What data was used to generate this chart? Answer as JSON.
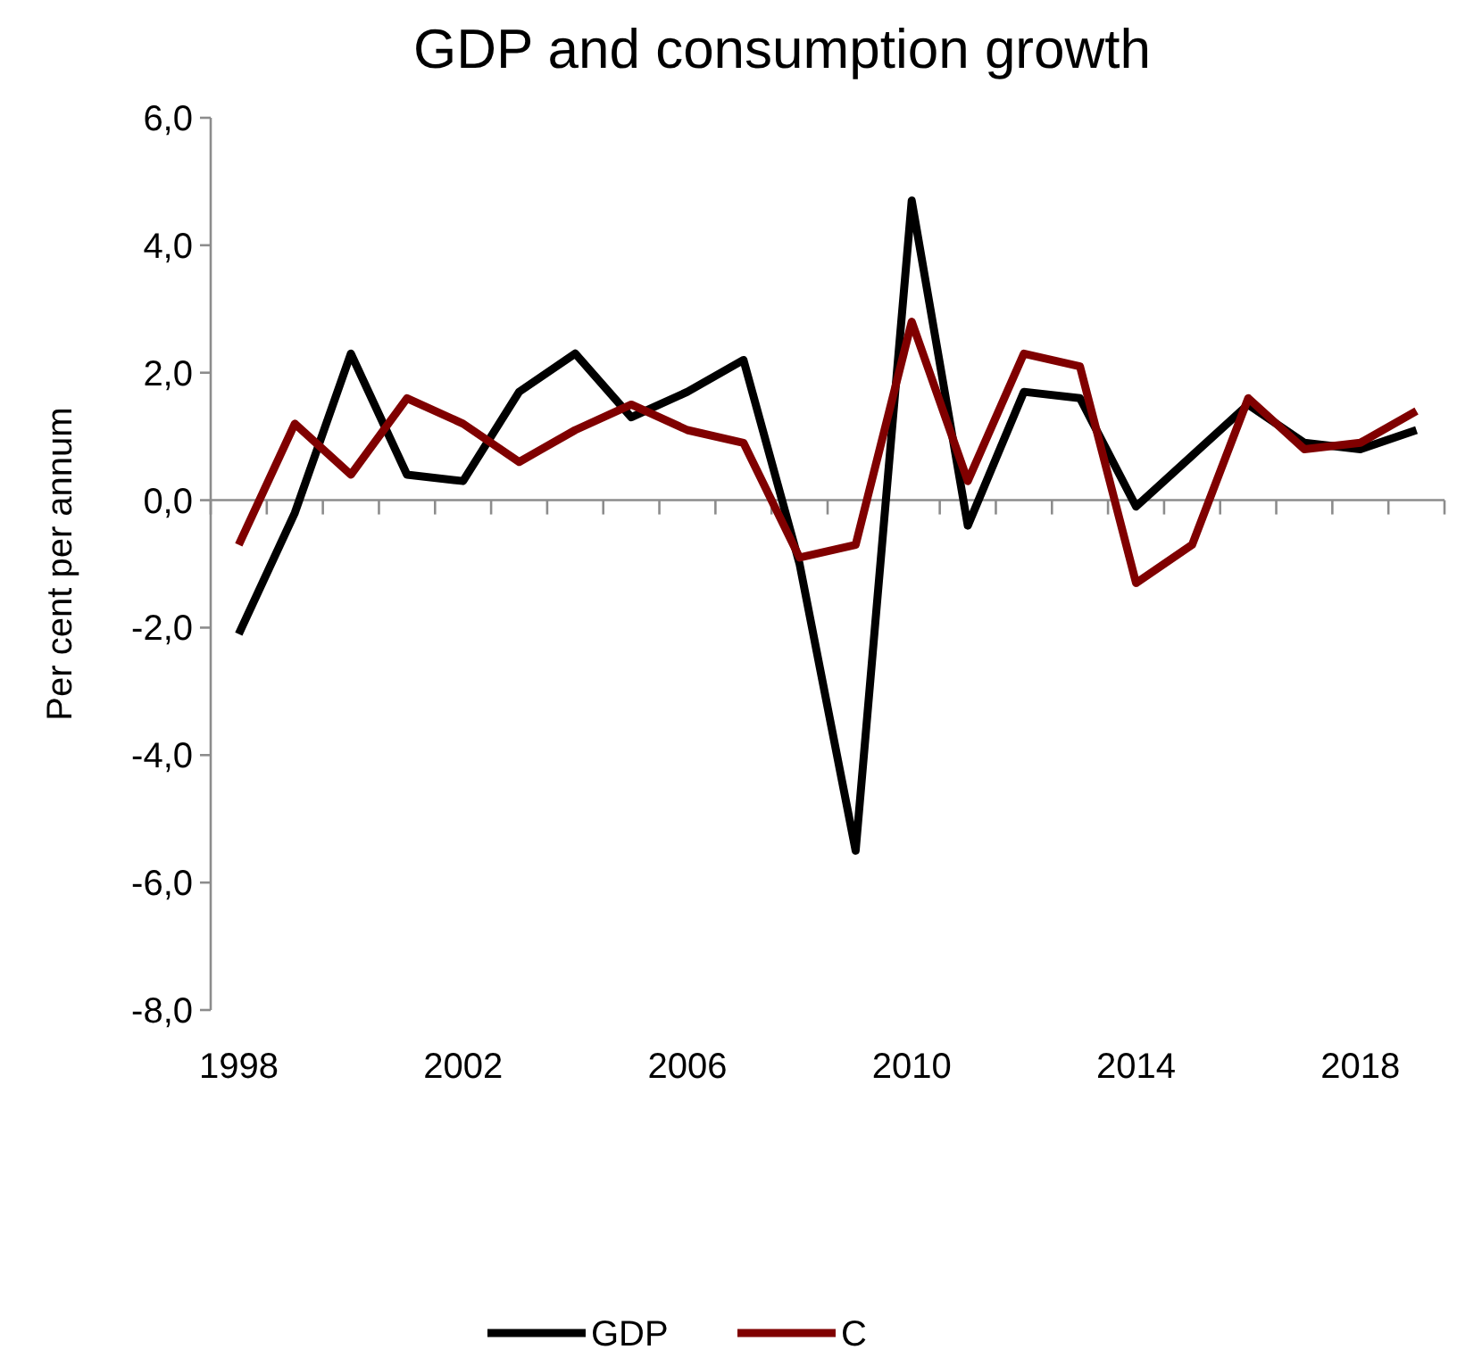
{
  "chart_data": {
    "type": "line",
    "title": "GDP and consumption growth",
    "ylabel": "Per cent per annum",
    "categories": [
      "1998",
      null,
      null,
      null,
      "2002",
      null,
      null,
      null,
      "2006",
      null,
      null,
      null,
      "2010",
      null,
      null,
      null,
      "2014",
      null,
      null,
      null,
      "2018",
      null
    ],
    "series": [
      {
        "name": "GDP",
        "color": "#000000",
        "values": [
          -2.1,
          -0.2,
          2.3,
          0.4,
          0.3,
          1.7,
          2.3,
          1.3,
          1.7,
          2.2,
          -1.0,
          -5.5,
          4.7,
          -0.4,
          1.7,
          1.6,
          -0.1,
          0.7,
          1.5,
          0.9,
          0.8,
          1.1
        ]
      },
      {
        "name": "C",
        "color": "#800000",
        "values": [
          -0.7,
          1.2,
          0.4,
          1.6,
          1.2,
          0.6,
          1.1,
          1.5,
          1.1,
          0.9,
          -0.9,
          -0.7,
          2.8,
          0.3,
          2.3,
          2.1,
          -1.3,
          -0.7,
          1.6,
          0.8,
          0.9,
          1.4
        ]
      }
    ],
    "ylim": [
      -8,
      6
    ],
    "yticks": [
      {
        "value": -8,
        "label": "-8,0"
      },
      {
        "value": -6,
        "label": "-6,0"
      },
      {
        "value": -4,
        "label": "-4,0"
      },
      {
        "value": -2,
        "label": "-2,0"
      },
      {
        "value": 0,
        "label": "0,0"
      },
      {
        "value": 2,
        "label": "2,0"
      },
      {
        "value": 4,
        "label": "4,0"
      },
      {
        "value": 6,
        "label": "6,0"
      }
    ],
    "legend": "bottom",
    "marker": "none",
    "line_style": "solid"
  }
}
